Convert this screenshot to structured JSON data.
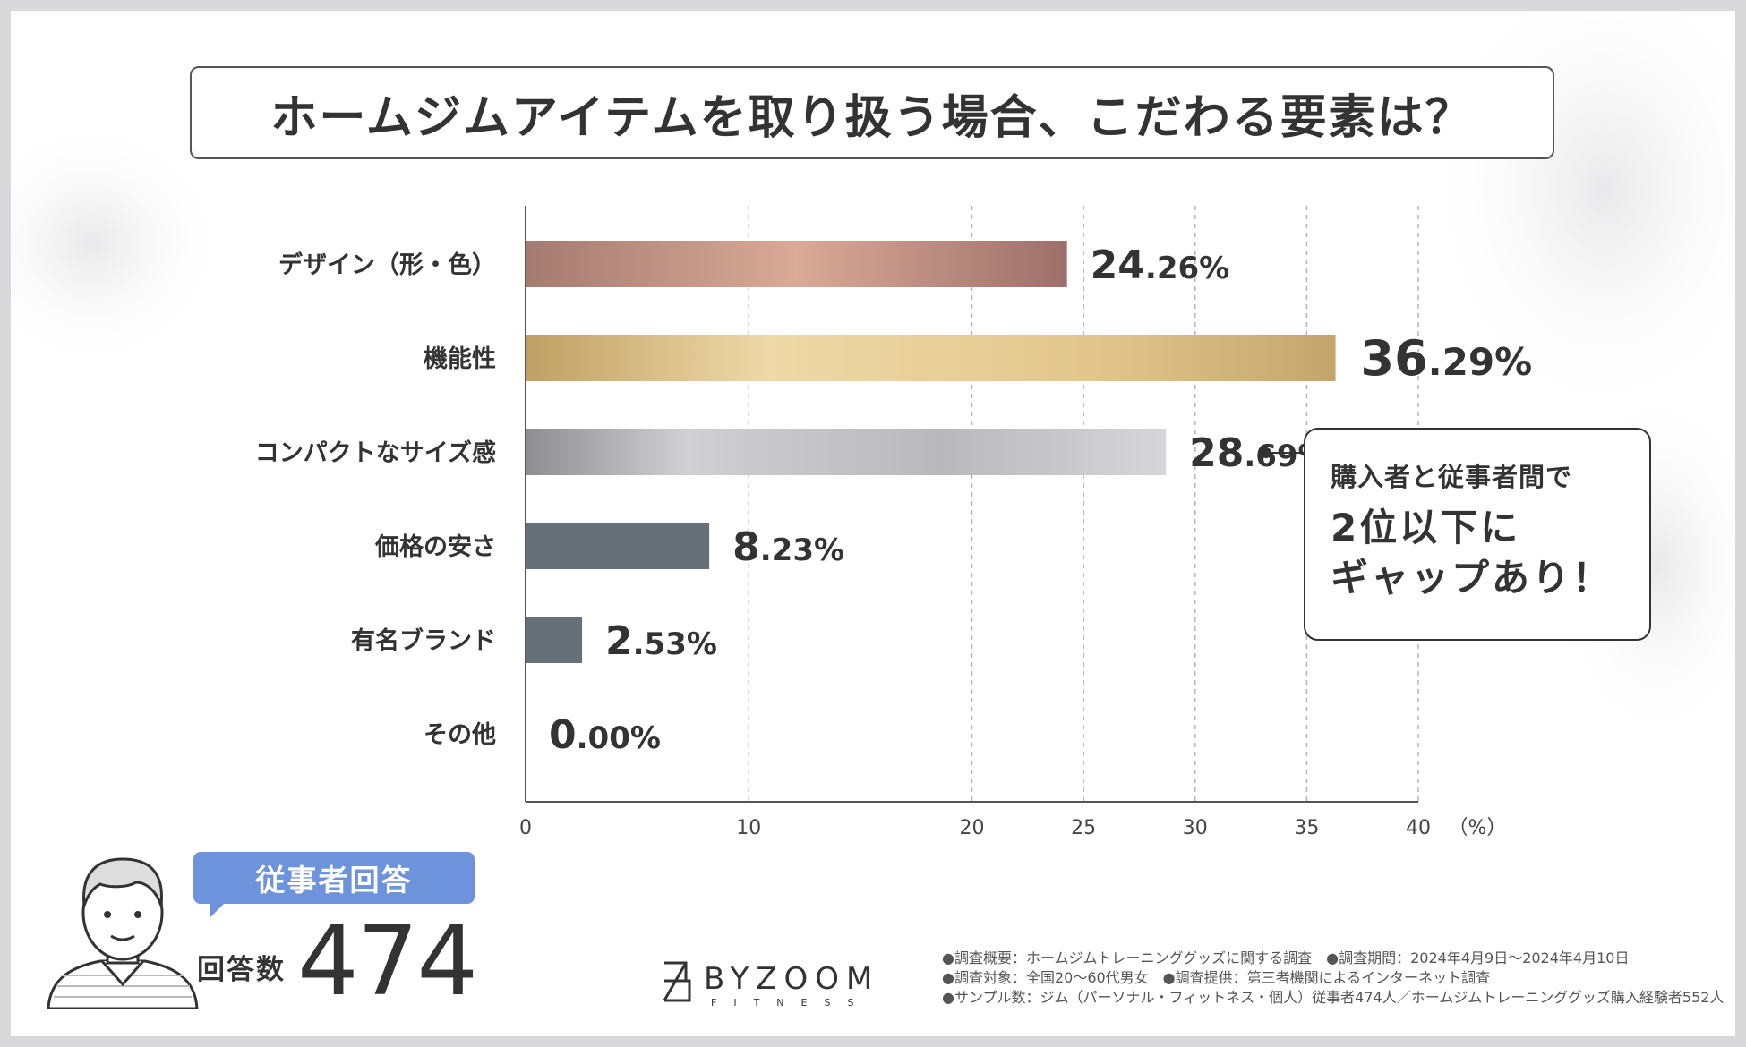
{
  "title": "ホームジムアイテムを取り扱う場合、こだわる要素は？",
  "chart_data": {
    "type": "bar",
    "orientation": "horizontal",
    "title": "ホームジムアイテムを取り扱う場合、こだわる要素は？",
    "categories": [
      "デザイン（形・色）",
      "機能性",
      "コンパクトなサイズ感",
      "価格の安さ",
      "有名ブランド",
      "その他"
    ],
    "values": [
      24.26,
      36.29,
      28.69,
      8.23,
      2.53,
      0.0
    ],
    "value_labels": [
      {
        "int": "24",
        "dec": ".26%"
      },
      {
        "int": "36",
        "dec": ".29%"
      },
      {
        "int": "28",
        "dec": ".69%"
      },
      {
        "int": "8",
        "dec": ".23%"
      },
      {
        "int": "2",
        "dec": ".53%"
      },
      {
        "int": "0",
        "dec": ".00%"
      }
    ],
    "xlim": [
      0,
      40
    ],
    "xticks": [
      0,
      10,
      20,
      25,
      30,
      35,
      40
    ],
    "xtick_labels": [
      "0",
      "10",
      "20",
      "25",
      "30",
      "35",
      "40"
    ],
    "xunit": "（%）",
    "grid": "vertical dashed",
    "highlight_category": "機能性",
    "colors": [
      "#b78a7c",
      "#cdb06e",
      "#b8b8bb",
      "#667079",
      "#667079",
      "#667079"
    ],
    "highlight_label_color": "#b38e2e"
  },
  "callout": {
    "line1": "購入者と従事者間で",
    "line2": "2位以下に",
    "line3": "ギャップあり！"
  },
  "respondent": {
    "badge": "従事者回答",
    "count_label": "回答数",
    "count": "474"
  },
  "logo": {
    "name": "BYZOOM",
    "sub": "FITNESS"
  },
  "notes": [
    "●調査概要：ホームジムトレーニンググッズに関する調査　●調査期間：2024年4月9日〜2024年4月10日",
    "●調査対象：全国20〜60代男女　●調査提供：第三者機関によるインターネット調査",
    "●サンプル数：ジム（パーソナル・フィットネス・個人）従事者474人／ホームジムトレーニンググッズ購入経験者552人"
  ]
}
